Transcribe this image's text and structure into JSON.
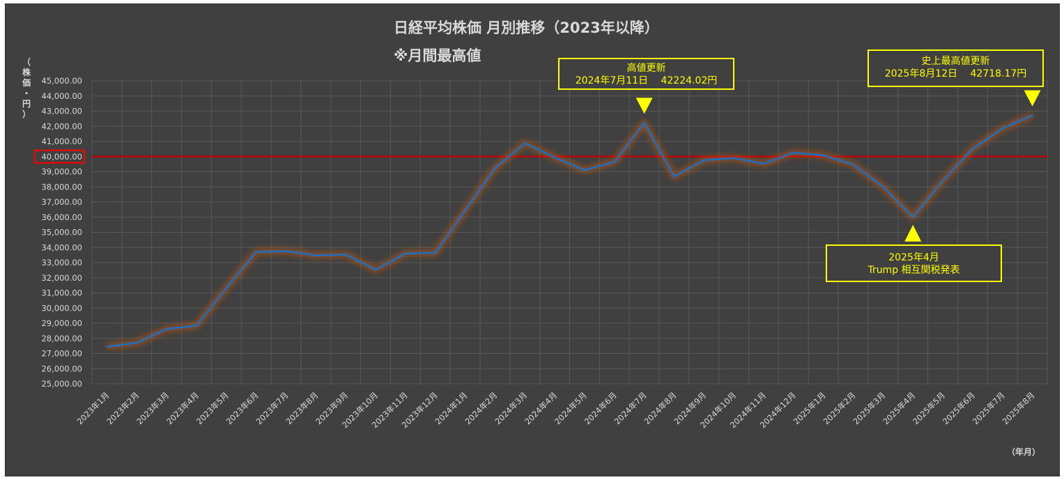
{
  "title": "日経平均株価 月別推移（2023年以降）",
  "subtitle": "※月間最高値",
  "ylabel_chars": [
    "（",
    "株",
    "価",
    "・",
    "円",
    "）"
  ],
  "xunit": "（年月）",
  "chart_data": {
    "type": "line",
    "categories": [
      "2023年1月",
      "2023年2月",
      "2023年3月",
      "2023年4月",
      "2023年5月",
      "2023年6月",
      "2023年7月",
      "2023年8月",
      "2023年9月",
      "2023年10月",
      "2023年11月",
      "2023年12月",
      "2024年1月",
      "2024年2月",
      "2024年3月",
      "2024年4月",
      "2024年5月",
      "2024年6月",
      "2024年7月",
      "2024年8月",
      "2024年9月",
      "2024年10月",
      "2024年11月",
      "2024年12月",
      "2025年1月",
      "2025年2月",
      "2025年3月",
      "2025年4月",
      "2025年5月",
      "2025年6月",
      "2025年7月",
      "2025年8月"
    ],
    "values": [
      27450,
      27700,
      28620,
      28840,
      31320,
      33700,
      33760,
      33480,
      33530,
      32530,
      33600,
      33650,
      36450,
      39230,
      40880,
      39940,
      39100,
      39640,
      42224.02,
      38680,
      39760,
      39900,
      39530,
      40250,
      40080,
      39480,
      38000,
      36000,
      38400,
      40510,
      41850,
      42718.17
    ],
    "ylim": [
      25000,
      45000
    ],
    "ytick_step": 1000,
    "ytick_format": "0,000.00",
    "reference_line": {
      "value": 40000,
      "color": "#c00000"
    },
    "highlighted_tick": "40,000.00",
    "line_color": "#1f6fbf",
    "glow_color": "#c55a11",
    "grid": true,
    "legend": "none"
  },
  "annotations": [
    {
      "lines": [
        "高値更新",
        "2024年7月11日　 42224.02円"
      ],
      "category": "2024年7月",
      "marker": "down"
    },
    {
      "lines": [
        "史上最高値更新",
        "2025年8月12日　 42718.17円"
      ],
      "category": "2025年8月",
      "marker": "down"
    },
    {
      "lines": [
        "2025年4月",
        "Trump 相互関税発表"
      ],
      "category": "2025年4月",
      "marker": "up"
    }
  ],
  "colors": {
    "background": "#404040",
    "text": "#d9d9d9",
    "annotation": "#ffff00",
    "grid": "#595959"
  }
}
